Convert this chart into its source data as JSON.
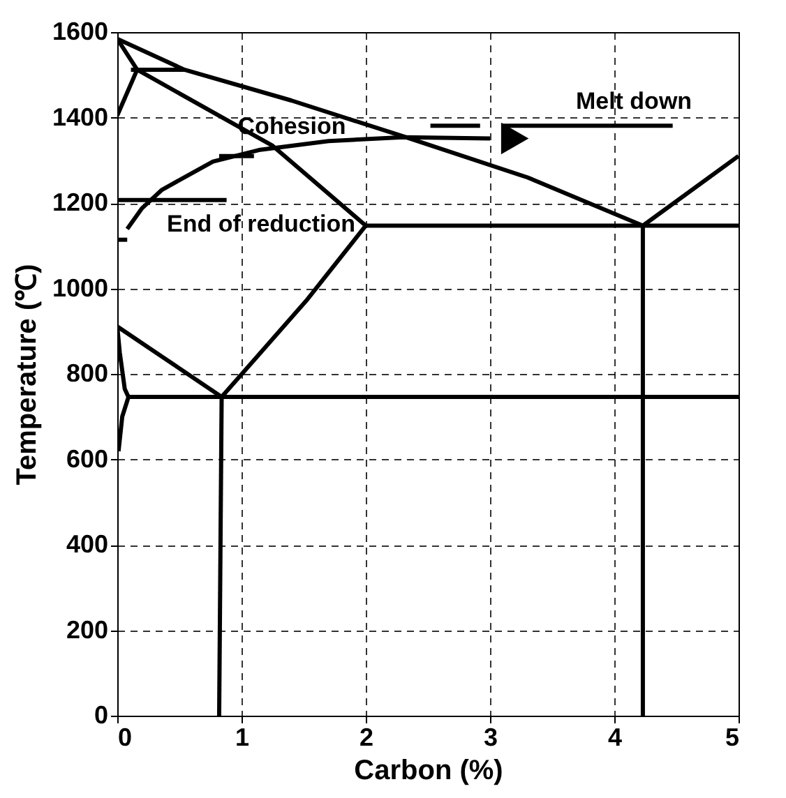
{
  "chart_data": {
    "type": "line",
    "xlabel": "Carbon (%)",
    "ylabel": "Temperature (℃)",
    "xlim": [
      0,
      5
    ],
    "ylim": [
      0,
      1600
    ],
    "xticks": [
      0,
      1,
      2,
      3,
      4,
      5
    ],
    "yticks": [
      0,
      200,
      400,
      600,
      800,
      1000,
      1200,
      1400,
      1600
    ],
    "grid": true,
    "legend": false,
    "line_style": "solid",
    "series": [
      {
        "color": "#000000",
        "x": [
          0,
          0.54,
          1.4,
          2.3,
          3.3,
          4.23
        ],
        "values": [
          1584,
          1512,
          1440,
          1356,
          1260,
          1147
        ]
      },
      {
        "color": "#000000",
        "x": [
          4.23,
          5
        ],
        "values": [
          1147,
          1310
        ]
      },
      {
        "color": "#000000",
        "x": [
          0,
          0.16
        ],
        "values": [
          1584,
          1512
        ]
      },
      {
        "color": "#000000",
        "x": [
          0.11,
          0.54
        ],
        "values": [
          1512,
          1512
        ]
      },
      {
        "color": "#000000",
        "x": [
          0,
          0.16
        ],
        "values": [
          1405,
          1512
        ]
      },
      {
        "color": "#000000",
        "x": [
          0.16,
          1.25,
          2.0
        ],
        "values": [
          1512,
          1334,
          1147
        ]
      },
      {
        "color": "#000000",
        "x": [
          2.0,
          5
        ],
        "values": [
          1147,
          1147
        ]
      },
      {
        "color": "#000000",
        "x": [
          2.0,
          1.52,
          0.84
        ],
        "values": [
          1147,
          971,
          746
        ]
      },
      {
        "color": "#000000",
        "x": [
          0,
          0.84
        ],
        "values": [
          911,
          746
        ]
      },
      {
        "color": "#000000",
        "x": [
          0.09,
          5
        ],
        "values": [
          746,
          746
        ]
      },
      {
        "color": "#000000",
        "x": [
          0,
          0.02,
          0.06,
          0.09,
          0.04,
          0.01
        ],
        "values": [
          911,
          850,
          765,
          746,
          700,
          619
        ]
      },
      {
        "color": "#000000",
        "x": [
          0.84,
          0.82
        ],
        "values": [
          746,
          0
        ]
      },
      {
        "color": "#000000",
        "x": [
          4.23,
          4.23
        ],
        "values": [
          1147,
          0
        ]
      },
      {
        "color": "#000000",
        "x": [
          0.08,
          0.2,
          0.36,
          0.77,
          1.14,
          1.7,
          2.3,
          3.0
        ],
        "values": [
          1139,
          1188,
          1231,
          1297,
          1324,
          1345,
          1354,
          1351
        ]
      },
      {
        "type": "scatter",
        "marker": "triangle",
        "color": "#000000",
        "x": [
          3.2
        ],
        "values": [
          1351
        ]
      },
      {
        "color": "#000000",
        "x": [
          0,
          0.88
        ],
        "values": [
          1207,
          1207
        ]
      },
      {
        "color": "#000000",
        "x": [
          0,
          0.08
        ],
        "values": [
          1114,
          1114
        ]
      },
      {
        "color": "#000000",
        "x": [
          0.82,
          1.1
        ],
        "values": [
          1310,
          1310
        ]
      },
      {
        "color": "#000000",
        "x": [
          2.52,
          2.92
        ],
        "values": [
          1381,
          1381
        ]
      },
      {
        "color": "#000000",
        "x": [
          3.09,
          4.47
        ],
        "values": [
          1381,
          1381
        ]
      }
    ],
    "annotations": [
      "Cohesion",
      "Melt down",
      "End of reduction"
    ]
  }
}
